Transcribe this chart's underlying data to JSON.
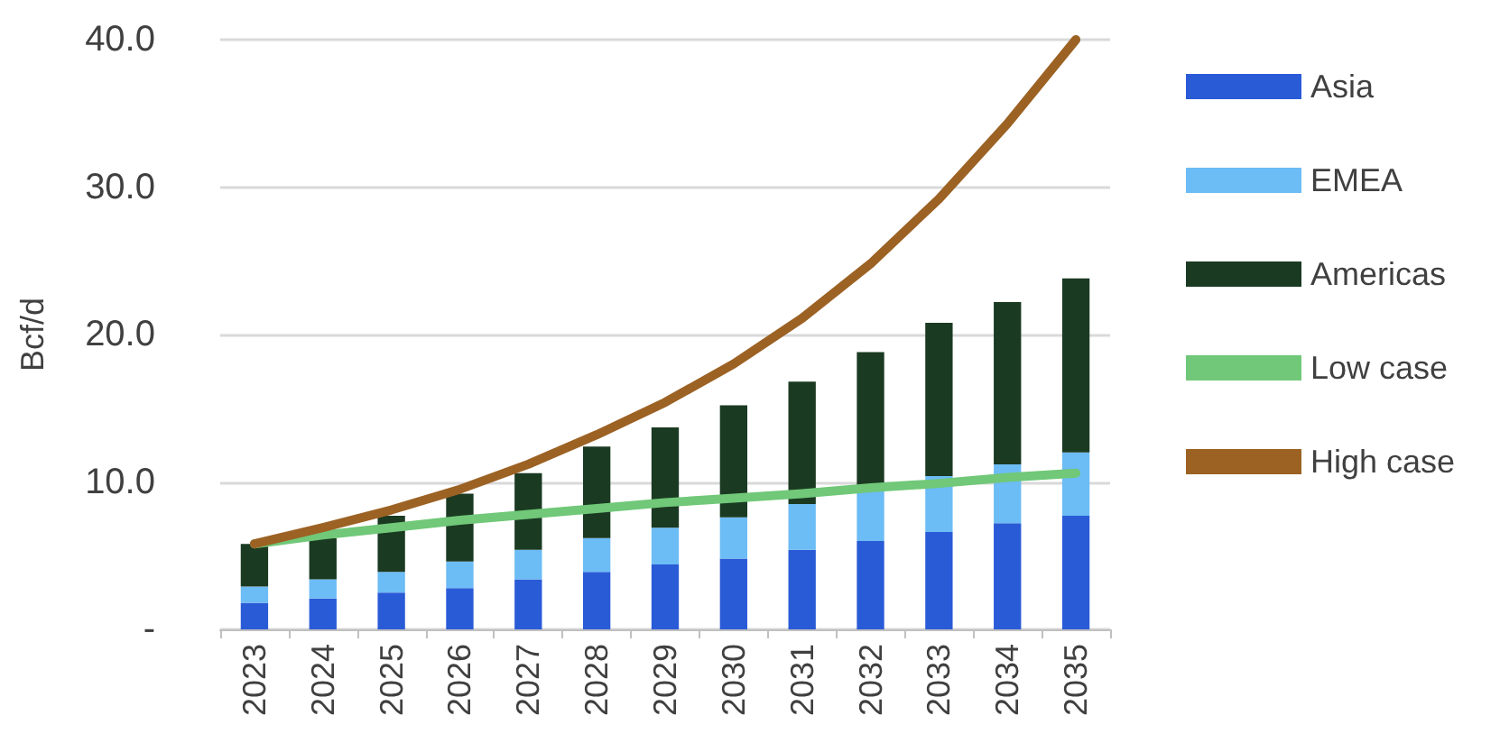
{
  "chart_data": {
    "type": "bar",
    "stacked": true,
    "ylabel": "Bcf/d",
    "categories": [
      "2023",
      "2024",
      "2025",
      "2026",
      "2027",
      "2028",
      "2029",
      "2030",
      "2031",
      "2032",
      "2033",
      "2034",
      "2035"
    ],
    "series": [
      {
        "name": "Asia",
        "color": "#2a5bd7",
        "values": [
          1.8,
          2.1,
          2.5,
          2.8,
          3.4,
          3.9,
          4.4,
          4.8,
          5.4,
          6.0,
          6.6,
          7.2,
          7.7
        ]
      },
      {
        "name": "EMEA",
        "color": "#6cbcf5",
        "values": [
          1.1,
          1.3,
          1.4,
          1.8,
          2.0,
          2.3,
          2.5,
          2.8,
          3.1,
          3.4,
          3.8,
          4.0,
          4.3
        ]
      },
      {
        "name": "Americas",
        "color": "#1b3a22",
        "values": [
          2.9,
          2.8,
          3.8,
          4.6,
          5.2,
          6.2,
          6.8,
          7.6,
          8.3,
          9.4,
          10.4,
          11.0,
          11.8
        ]
      },
      {
        "name": "Low case",
        "type": "line",
        "color": "#70c878",
        "values": [
          5.8,
          6.4,
          6.9,
          7.4,
          7.8,
          8.2,
          8.6,
          8.9,
          9.2,
          9.6,
          9.9,
          10.3,
          10.6
        ]
      },
      {
        "name": "High case",
        "type": "line",
        "color": "#9c6224",
        "values": [
          5.8,
          6.9,
          8.1,
          9.5,
          11.2,
          13.2,
          15.4,
          18.0,
          21.1,
          24.8,
          29.2,
          34.3,
          40.0
        ]
      }
    ],
    "ylim": [
      0,
      40
    ],
    "yticks": [
      {
        "value": 0,
        "label": "-"
      },
      {
        "value": 10,
        "label": "10.0"
      },
      {
        "value": 20,
        "label": "20.0"
      },
      {
        "value": 30,
        "label": "30.0"
      },
      {
        "value": 40,
        "label": "40.0"
      }
    ],
    "grid": "y",
    "legend": "right",
    "marker": "none"
  }
}
